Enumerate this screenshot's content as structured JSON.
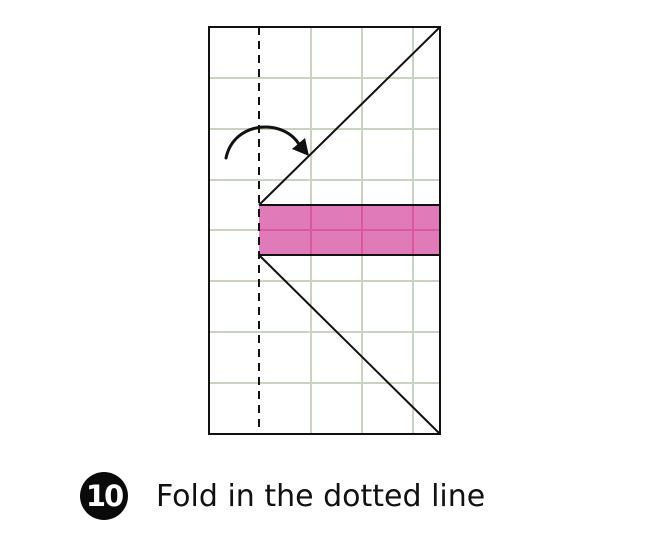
{
  "step": {
    "number": "10",
    "instruction": "Fold in the dotted line"
  },
  "diagram": {
    "grid_columns": 4.5,
    "grid_rows": 8,
    "highlight_color": "#e07ab9",
    "grid_color": "#c8d4c0",
    "outline_color": "#111111",
    "icons": [
      "fold-arrow-icon",
      "dotted-fold-line"
    ]
  }
}
